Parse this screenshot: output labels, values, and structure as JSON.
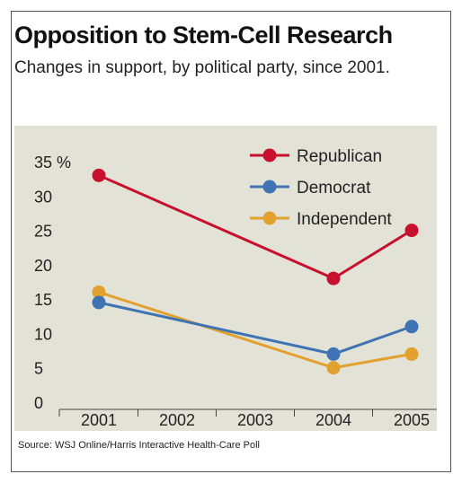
{
  "title": "Opposition to Stem-Cell Research",
  "subtitle": "Changes in support, by political party, since 2001.",
  "source": "Source: WSJ Online/Harris Interactive Health-Care Poll",
  "colors": {
    "plot_background": "#e3e2d7",
    "Republican": "#c8102e",
    "Democrat": "#3f74b4",
    "Independent": "#e2a12e"
  },
  "chart_data": {
    "type": "line",
    "title": "Opposition to Stem-Cell Research",
    "subtitle": "Changes in support, by political party, since 2001.",
    "xlabel": "",
    "ylabel": "",
    "categories": [
      "2001",
      "2002",
      "2003",
      "2004",
      "2005"
    ],
    "y_ticks": [
      "0",
      "5",
      "10",
      "15",
      "20",
      "25",
      "30",
      "35 %"
    ],
    "ylim": [
      0,
      35
    ],
    "grid": false,
    "legend_position": "top-right",
    "series": [
      {
        "name": "Republican",
        "x": [
          "2001",
          "2004",
          "2005"
        ],
        "values": [
          33,
          18,
          25
        ]
      },
      {
        "name": "Democrat",
        "x": [
          "2001",
          "2004",
          "2005"
        ],
        "values": [
          14.5,
          7,
          11
        ]
      },
      {
        "name": "Independent",
        "x": [
          "2001",
          "2004",
          "2005"
        ],
        "values": [
          16,
          5,
          7
        ]
      }
    ]
  }
}
